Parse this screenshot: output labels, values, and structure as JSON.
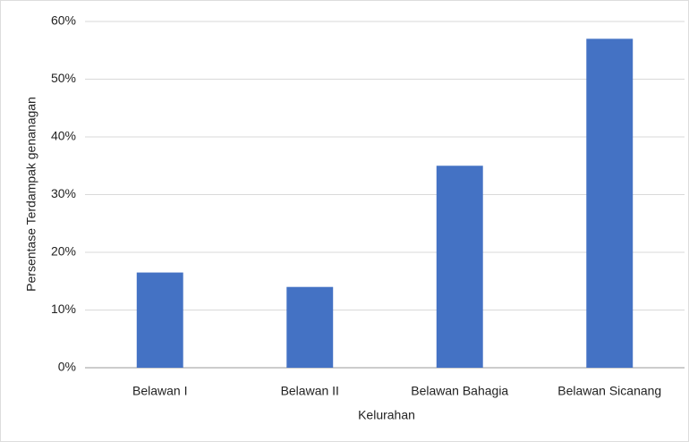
{
  "chart_data": {
    "type": "bar",
    "x_label": "Kelurahan",
    "y_label": "Persentase Terdampak genanagan",
    "categories": [
      "Belawan I",
      "Belawan II",
      "Belawan Bahagia",
      "Belawan Sicanang"
    ],
    "values": [
      16.5,
      14,
      35,
      57
    ],
    "color": "#4472c4",
    "ylim": [
      0,
      60
    ],
    "yticks": [
      {
        "value": 0,
        "label": "0%"
      },
      {
        "value": 10,
        "label": "10%"
      },
      {
        "value": 20,
        "label": "20%"
      },
      {
        "value": 30,
        "label": "30%"
      },
      {
        "value": 40,
        "label": "40%"
      },
      {
        "value": 50,
        "label": "50%"
      },
      {
        "value": 60,
        "label": "60%"
      }
    ],
    "grid": true
  }
}
